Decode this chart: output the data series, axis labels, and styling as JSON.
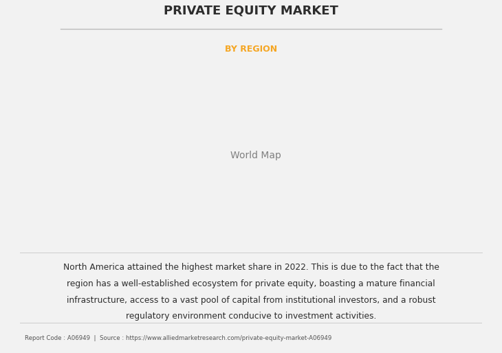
{
  "title": "PRIVATE EQUITY MARKET",
  "subtitle": "BY REGION",
  "subtitle_color": "#F5A623",
  "title_color": "#2d2d2d",
  "bg_color": "#f2f2f2",
  "description_line1": "North America attained the highest market share in 2022. This is due to the fact that the",
  "description_line2": "region has a well-established ecosystem for private equity, boasting a mature financial",
  "description_line3": "infrastructure, access to a vast pool of capital from institutional investors, and a robust",
  "description_line4": "regulatory environment conducive to investment activities.",
  "footer": "Report Code : A06949  |  Source : https://www.alliedmarketresearch.com/private-equity-market-A06949",
  "color_green": "#8fbc8f",
  "color_yellowgreen": "#c8d87a",
  "color_white_usa": "#e8e8e8",
  "color_shadow": "#999999",
  "color_border": "#7aaccc",
  "color_ocean": "#f2f2f2"
}
